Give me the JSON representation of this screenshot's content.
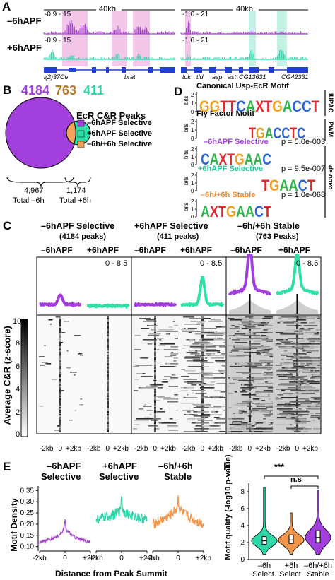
{
  "panel_a": {
    "label": "A",
    "row_labels": [
      "–6hAPF",
      "+6hAPF"
    ],
    "scale_left": "40kb",
    "scale_right": "40kb",
    "range_top_left": "-0.9 - 15",
    "range_bot_left": "-0.9 - 15",
    "range_top_right": "-1.0 - 21",
    "range_bot_right": "-1.0 - 21",
    "genes_left": [
      "l(2)37Ce",
      "brat"
    ],
    "genes_right": [
      "tok",
      "tld",
      "asp",
      "ast",
      "CG13631",
      "CG42331"
    ],
    "colors": {
      "minus6h": "#a64ac9",
      "plus6h": "#2ed6a8",
      "highlight_left": "#f3c6ea",
      "highlight_right": "#c4f0e6",
      "gene": "#1f3fd6"
    }
  },
  "panel_b": {
    "label": "B",
    "count_minus": "4184",
    "count_stable": "763",
    "count_plus": "411",
    "legend_title": "EcR C&R Peaks",
    "legend_items": [
      "–6hAPF Selective",
      "+6hAPF Selective",
      "–6h/+6h Selective"
    ],
    "total_minus_value": "4,967",
    "total_minus_label": "Total –6h",
    "total_plus_value": "1,174",
    "total_plus_label": "Total +6h",
    "colors": {
      "minus": "#a23fdc",
      "plus": "#2ee0a8",
      "stable": "#f2a35e"
    }
  },
  "panel_d": {
    "label": "D",
    "title_canonical": "Canonical Usp-EcR Motif",
    "title_fly": "Fly Factor Motif",
    "side_iupac": "IUPAC",
    "side_pwm": "PWM",
    "side_denovo": "de novo",
    "bits": "bits",
    "y_ticks": [
      "2",
      "1",
      "0"
    ],
    "logo_canonical": "GGTTCAXTGACCT",
    "logo_fly": "TGACCTC",
    "logo_minus": "CAXTGAAC",
    "logo_plus": "TGAACT",
    "logo_stable": "AXTGAACT",
    "motifs": [
      {
        "name": "–6hAPF Selective",
        "p": "p = 5.0e-003",
        "color": "#a23fdc"
      },
      {
        "name": "+6hAPF Selective",
        "p": "p = 9.5e-007",
        "color": "#20c79a"
      },
      {
        "name": "–6h/+6h Stable",
        "p": "p = 1.0e-068",
        "color": "#f08a30"
      }
    ]
  },
  "panel_c": {
    "label": "C",
    "groups": [
      {
        "title": "–6hAPF Selective",
        "sub": "(4184 peaks)"
      },
      {
        "title": "+6hAPF Selective",
        "sub": "(411 peaks)"
      },
      {
        "title": "–6h/+6h Stable",
        "sub": "(763 Peaks)"
      }
    ],
    "col_labels": [
      "–6hAPF",
      "+6hAPF",
      "–6hAPF",
      "+6hAPF",
      "–6hAPF",
      "+6hAPF"
    ],
    "range": "0 - 8.5",
    "colorbar_label": "Average C&R (z-score)",
    "colorbar_ticks": [
      "10",
      "8",
      "6",
      "4",
      "2",
      "0"
    ],
    "x_ticks": [
      "-2kb",
      "0",
      "+2kb"
    ]
  },
  "panel_e": {
    "label": "E",
    "titles": [
      [
        "–6hAPF",
        "Selective"
      ],
      [
        "+6hAPF",
        "Selective"
      ],
      [
        "–6h/+6h",
        "Stable"
      ]
    ],
    "ylabel": "Motif Density",
    "xlabel": "Distance from Peak Summit",
    "y_ticks": [
      "0.35",
      "0.30",
      "0.25",
      "0.20",
      "0.15",
      "0.10"
    ],
    "x_ticks": [
      "-2kb",
      "0",
      "+2kb"
    ]
  },
  "panel_f": {
    "label": "F",
    "ylabel": "Motif quality (-log10 p-value)",
    "y_ticks": [
      "8",
      "6",
      "4",
      "2",
      "0"
    ],
    "sig_top": "***",
    "sig_bottom": "n.s",
    "categories": [
      [
        "–6h",
        "Select."
      ],
      [
        "+6h",
        "Select."
      ],
      [
        "–6h/+6h",
        "Stable"
      ]
    ]
  },
  "chart_data": [
    {
      "type": "line",
      "panel": "E",
      "title": "–6hAPF Selective",
      "xlabel": "Distance from Peak Summit",
      "ylabel": "Motif Density",
      "ylim": [
        0.08,
        0.37
      ],
      "x_ticks": [
        "-2kb",
        "0",
        "+2kb"
      ],
      "series": [
        {
          "x": [
            -2000,
            -1000,
            -500,
            -100,
            0,
            100,
            500,
            1000,
            2000
          ],
          "values": [
            0.12,
            0.135,
            0.15,
            0.175,
            0.22,
            0.175,
            0.15,
            0.135,
            0.12
          ]
        }
      ],
      "color": "#a64ac9"
    },
    {
      "type": "line",
      "panel": "E",
      "title": "+6hAPF Selective",
      "xlabel": "Distance from Peak Summit",
      "ylabel": "Motif Density",
      "ylim": [
        0.08,
        0.37
      ],
      "x_ticks": [
        "-2kb",
        "0",
        "+2kb"
      ],
      "series": [
        {
          "x": [
            -2000,
            -1000,
            -500,
            -100,
            0,
            100,
            500,
            1000,
            2000
          ],
          "values": [
            0.22,
            0.235,
            0.245,
            0.26,
            0.335,
            0.26,
            0.245,
            0.235,
            0.22
          ]
        }
      ],
      "color": "#2ed6a8"
    },
    {
      "type": "line",
      "panel": "E",
      "title": "–6h/+6h Stable",
      "xlabel": "Distance from Peak Summit",
      "ylabel": "Motif Density",
      "ylim": [
        0.08,
        0.37
      ],
      "x_ticks": [
        "-2kb",
        "0",
        "+2kb"
      ],
      "series": [
        {
          "x": [
            -2000,
            -1000,
            -500,
            -100,
            0,
            100,
            500,
            1000,
            2000
          ],
          "values": [
            0.2,
            0.225,
            0.245,
            0.27,
            0.315,
            0.27,
            0.245,
            0.225,
            0.2
          ]
        }
      ],
      "color": "#f0954a"
    },
    {
      "type": "violin",
      "panel": "F",
      "ylabel": "Motif quality (-log10 p-value)",
      "ylim": [
        0,
        9
      ],
      "categories": [
        "–6h Select.",
        "+6h Select.",
        "–6h/+6h Stable"
      ],
      "medians": [
        2.2,
        2.3,
        2.6
      ],
      "q1": [
        1.8,
        1.9,
        2.0
      ],
      "q3": [
        2.7,
        2.9,
        3.4
      ],
      "max": [
        8.5,
        5.5,
        8.2
      ],
      "colors": [
        "#2ed6a8",
        "#f0954a",
        "#a23fdc"
      ]
    }
  ]
}
